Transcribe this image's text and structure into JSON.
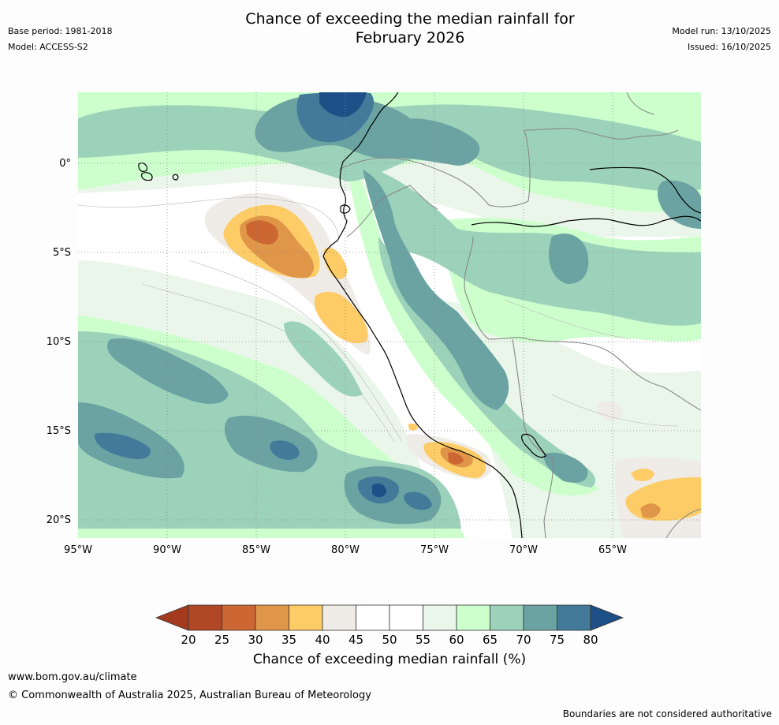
{
  "header": {
    "title_line1": "Chance of exceeding the median rainfall for",
    "title_line2": "February 2026",
    "base_period": "Base period: 1981-2018",
    "model": "Model: ACCESS-S2",
    "model_run": "Model run: 13/10/2025",
    "issued": "Issued: 16/10/2025"
  },
  "map": {
    "lat_labels": [
      "0°",
      "5°S",
      "10°S",
      "15°S",
      "20°S"
    ],
    "lon_labels": [
      "95°W",
      "90°W",
      "85°W",
      "80°W",
      "75°W",
      "70°W",
      "65°W"
    ],
    "colors": {
      "ocean_base": "#ffffff",
      "c40_45": "#efebe7",
      "c35_40": "#fdcc66",
      "c30_35": "#e09648",
      "c25_30": "#cc6633",
      "c55_60": "#eaf6ea",
      "c60_65": "#ccffcc",
      "c65_70": "#9dd2ba",
      "c70_75": "#6aa3a2",
      "c75_80": "#437a9a",
      "c80_plus": "#1e4f86",
      "coast": "#000000",
      "border": "#888888",
      "grid": "#888888"
    }
  },
  "colorbar": {
    "ticks": [
      "20",
      "25",
      "30",
      "35",
      "40",
      "45",
      "50",
      "55",
      "60",
      "65",
      "70",
      "75",
      "80"
    ],
    "colors": [
      "#b04825",
      "#cc6633",
      "#e09648",
      "#fdcc66",
      "#efebe7",
      "#ffffff",
      "#ffffff",
      "#eaf6ea",
      "#ccffcc",
      "#9dd2ba",
      "#6aa3a2",
      "#437a9a"
    ],
    "low_color": "#a33a1e",
    "high_color": "#1e4f86",
    "label": "Chance of exceeding median rainfall (%)"
  },
  "footer": {
    "url": "www.bom.gov.au/climate",
    "copyright": "© Commonwealth of Australia 2025, Australian Bureau of Meteorology",
    "note": "Boundaries are not considered authoritative"
  }
}
